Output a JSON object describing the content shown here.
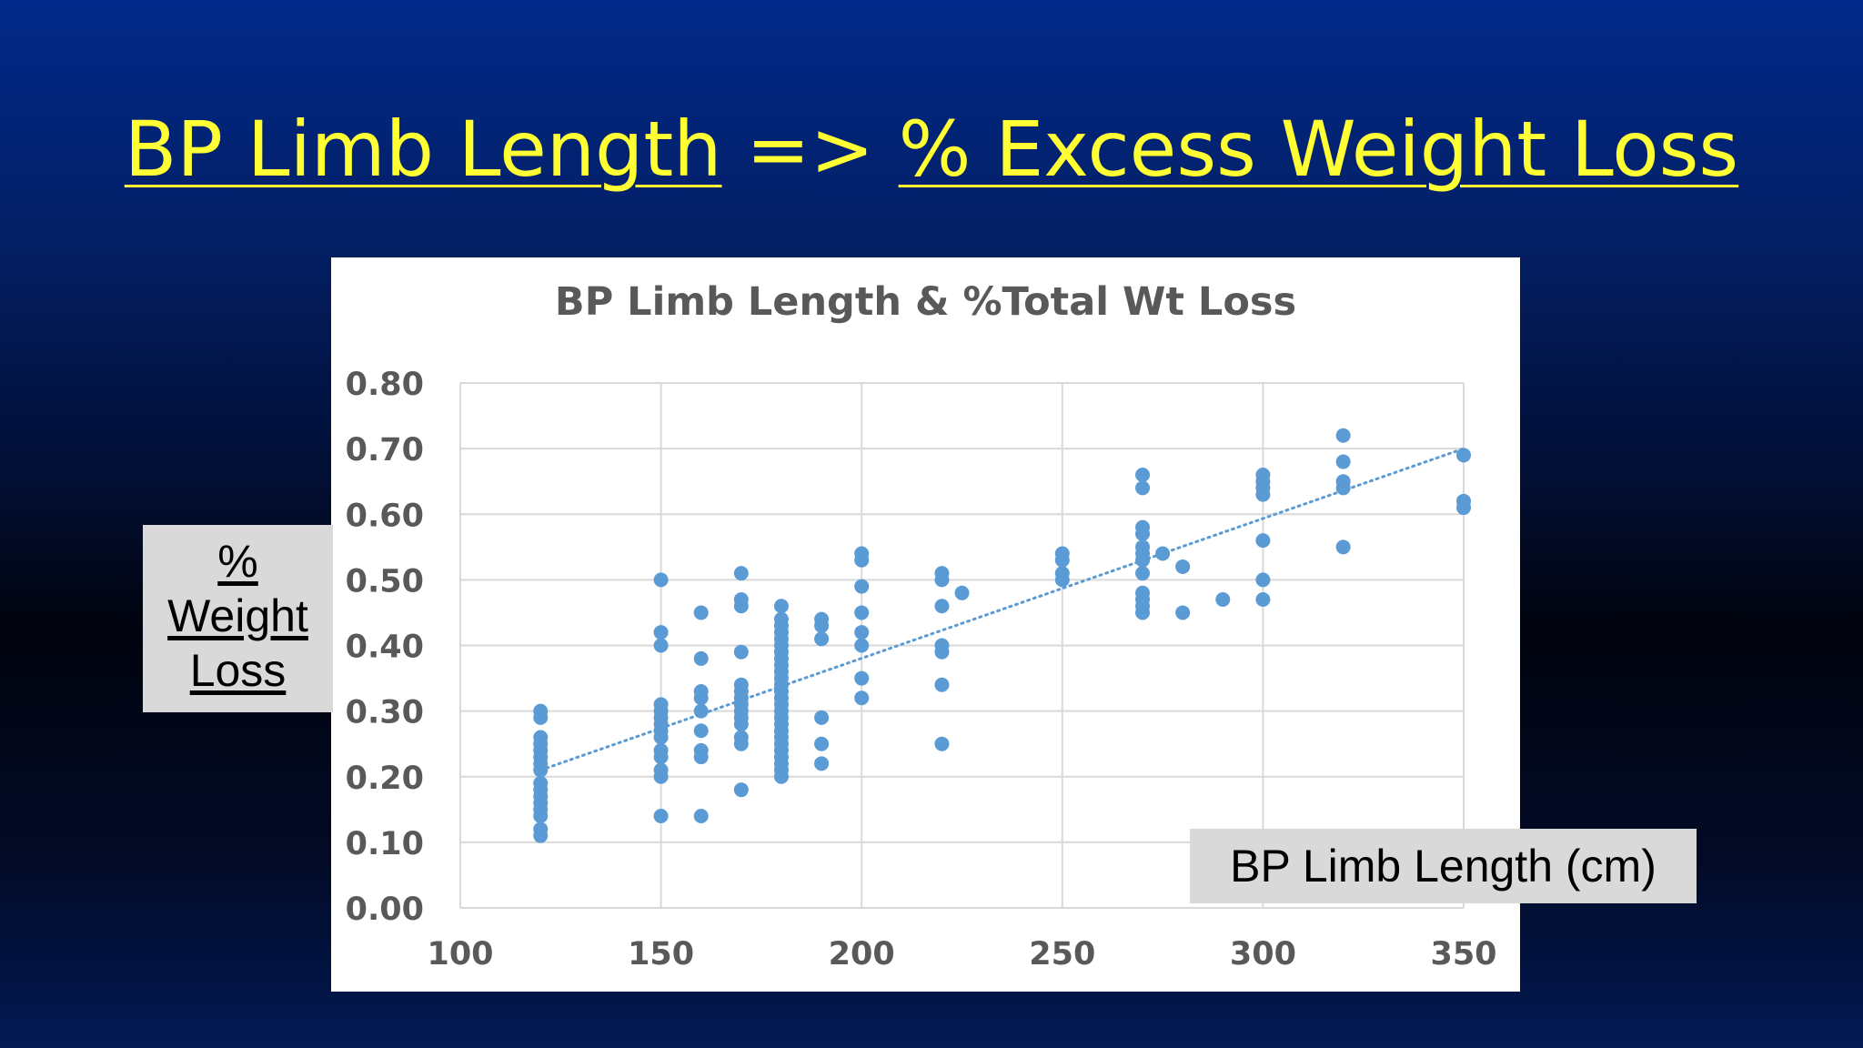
{
  "slide": {
    "title_left": "BP Limb Length",
    "title_arrow": "=>",
    "title_right": "% Excess Weight Loss",
    "y_label_lines": [
      "%",
      "Weight",
      "Loss"
    ],
    "x_label": "BP Limb Length (cm)"
  },
  "chart_data": {
    "type": "scatter",
    "title": "BP Limb Length & %Total Wt Loss",
    "xlabel": "BP Limb Length (cm)",
    "ylabel": "% Weight Loss",
    "xlim": [
      100,
      350
    ],
    "ylim": [
      0,
      0.8
    ],
    "x_ticks": [
      "100",
      "150",
      "200",
      "250",
      "300",
      "350"
    ],
    "y_ticks": [
      "0.00",
      "0.10",
      "0.20",
      "0.30",
      "0.40",
      "0.50",
      "0.60",
      "0.70",
      "0.80"
    ],
    "grid": true,
    "point_color": "#5b9bd5",
    "trendline": {
      "type": "linear",
      "style": "dotted",
      "x": [
        120,
        350
      ],
      "y": [
        0.21,
        0.7
      ]
    },
    "points": [
      [
        120,
        0.3
      ],
      [
        120,
        0.29
      ],
      [
        120,
        0.26
      ],
      [
        120,
        0.25
      ],
      [
        120,
        0.24
      ],
      [
        120,
        0.23
      ],
      [
        120,
        0.22
      ],
      [
        120,
        0.21
      ],
      [
        120,
        0.19
      ],
      [
        120,
        0.18
      ],
      [
        120,
        0.17
      ],
      [
        120,
        0.16
      ],
      [
        120,
        0.15
      ],
      [
        120,
        0.14
      ],
      [
        120,
        0.12
      ],
      [
        120,
        0.11
      ],
      [
        150,
        0.5
      ],
      [
        150,
        0.42
      ],
      [
        150,
        0.4
      ],
      [
        150,
        0.31
      ],
      [
        150,
        0.3
      ],
      [
        150,
        0.29
      ],
      [
        150,
        0.28
      ],
      [
        150,
        0.27
      ],
      [
        150,
        0.26
      ],
      [
        150,
        0.24
      ],
      [
        150,
        0.23
      ],
      [
        150,
        0.21
      ],
      [
        150,
        0.2
      ],
      [
        150,
        0.14
      ],
      [
        160,
        0.45
      ],
      [
        160,
        0.38
      ],
      [
        160,
        0.33
      ],
      [
        160,
        0.32
      ],
      [
        160,
        0.3
      ],
      [
        160,
        0.27
      ],
      [
        160,
        0.24
      ],
      [
        160,
        0.23
      ],
      [
        160,
        0.14
      ],
      [
        170,
        0.51
      ],
      [
        170,
        0.47
      ],
      [
        170,
        0.46
      ],
      [
        170,
        0.39
      ],
      [
        170,
        0.34
      ],
      [
        170,
        0.33
      ],
      [
        170,
        0.32
      ],
      [
        170,
        0.31
      ],
      [
        170,
        0.3
      ],
      [
        170,
        0.29
      ],
      [
        170,
        0.28
      ],
      [
        170,
        0.26
      ],
      [
        170,
        0.25
      ],
      [
        170,
        0.18
      ],
      [
        180,
        0.46
      ],
      [
        180,
        0.44
      ],
      [
        180,
        0.43
      ],
      [
        180,
        0.42
      ],
      [
        180,
        0.41
      ],
      [
        180,
        0.4
      ],
      [
        180,
        0.39
      ],
      [
        180,
        0.38
      ],
      [
        180,
        0.37
      ],
      [
        180,
        0.36
      ],
      [
        180,
        0.35
      ],
      [
        180,
        0.34
      ],
      [
        180,
        0.33
      ],
      [
        180,
        0.32
      ],
      [
        180,
        0.31
      ],
      [
        180,
        0.3
      ],
      [
        180,
        0.29
      ],
      [
        180,
        0.28
      ],
      [
        180,
        0.27
      ],
      [
        180,
        0.26
      ],
      [
        180,
        0.25
      ],
      [
        180,
        0.24
      ],
      [
        180,
        0.23
      ],
      [
        180,
        0.22
      ],
      [
        180,
        0.21
      ],
      [
        180,
        0.2
      ],
      [
        190,
        0.44
      ],
      [
        190,
        0.43
      ],
      [
        190,
        0.41
      ],
      [
        190,
        0.29
      ],
      [
        190,
        0.25
      ],
      [
        190,
        0.22
      ],
      [
        200,
        0.54
      ],
      [
        200,
        0.53
      ],
      [
        200,
        0.49
      ],
      [
        200,
        0.45
      ],
      [
        200,
        0.42
      ],
      [
        200,
        0.4
      ],
      [
        200,
        0.35
      ],
      [
        200,
        0.32
      ],
      [
        220,
        0.51
      ],
      [
        220,
        0.5
      ],
      [
        220,
        0.46
      ],
      [
        220,
        0.4
      ],
      [
        220,
        0.39
      ],
      [
        220,
        0.34
      ],
      [
        220,
        0.25
      ],
      [
        225,
        0.48
      ],
      [
        250,
        0.54
      ],
      [
        250,
        0.53
      ],
      [
        250,
        0.51
      ],
      [
        250,
        0.5
      ],
      [
        270,
        0.66
      ],
      [
        270,
        0.64
      ],
      [
        270,
        0.58
      ],
      [
        270,
        0.57
      ],
      [
        270,
        0.55
      ],
      [
        270,
        0.54
      ],
      [
        270,
        0.53
      ],
      [
        270,
        0.51
      ],
      [
        270,
        0.48
      ],
      [
        270,
        0.47
      ],
      [
        270,
        0.46
      ],
      [
        270,
        0.45
      ],
      [
        275,
        0.54
      ],
      [
        280,
        0.52
      ],
      [
        280,
        0.45
      ],
      [
        290,
        0.47
      ],
      [
        300,
        0.66
      ],
      [
        300,
        0.65
      ],
      [
        300,
        0.64
      ],
      [
        300,
        0.63
      ],
      [
        300,
        0.56
      ],
      [
        300,
        0.5
      ],
      [
        300,
        0.47
      ],
      [
        320,
        0.72
      ],
      [
        320,
        0.68
      ],
      [
        320,
        0.65
      ],
      [
        320,
        0.64
      ],
      [
        320,
        0.55
      ],
      [
        350,
        0.69
      ],
      [
        350,
        0.62
      ],
      [
        350,
        0.61
      ]
    ]
  }
}
